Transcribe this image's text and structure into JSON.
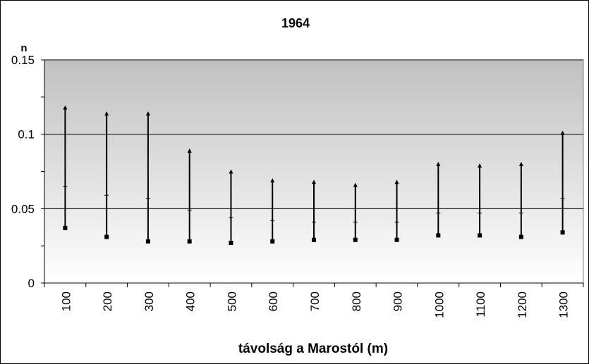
{
  "chart_data": {
    "type": "hi-lo-range",
    "title": "1964",
    "xlabel": "távolság a Marostól (m)",
    "ylabel": "n",
    "categories": [
      "100",
      "200",
      "300",
      "400",
      "500",
      "600",
      "700",
      "800",
      "900",
      "1000",
      "1100",
      "1200",
      "1300"
    ],
    "ylim": [
      0,
      0.15
    ],
    "yticks": [
      {
        "value": 0,
        "label": "0"
      },
      {
        "value": 0.05,
        "label": "0.05"
      },
      {
        "value": 0.1,
        "label": "0.1"
      },
      {
        "value": 0.15,
        "label": "0.15"
      }
    ],
    "grid": true,
    "series": [
      {
        "values": [
          0.118,
          0.114,
          0.114,
          0.089,
          0.075,
          0.069,
          0.068,
          0.066,
          0.068,
          0.08,
          0.079,
          0.08,
          0.101
        ]
      },
      {
        "values": [
          0.065,
          0.059,
          0.057,
          0.049,
          0.044,
          0.042,
          0.041,
          0.041,
          0.041,
          0.047,
          0.047,
          0.047,
          0.057
        ]
      },
      {
        "values": [
          0.037,
          0.031,
          0.028,
          0.028,
          0.027,
          0.028,
          0.029,
          0.029,
          0.029,
          0.032,
          0.032,
          0.031,
          0.034
        ]
      }
    ],
    "colors": {
      "background_top": "#c0c0c0",
      "background_bottom": "#ffffff",
      "marks": "#000000"
    }
  }
}
